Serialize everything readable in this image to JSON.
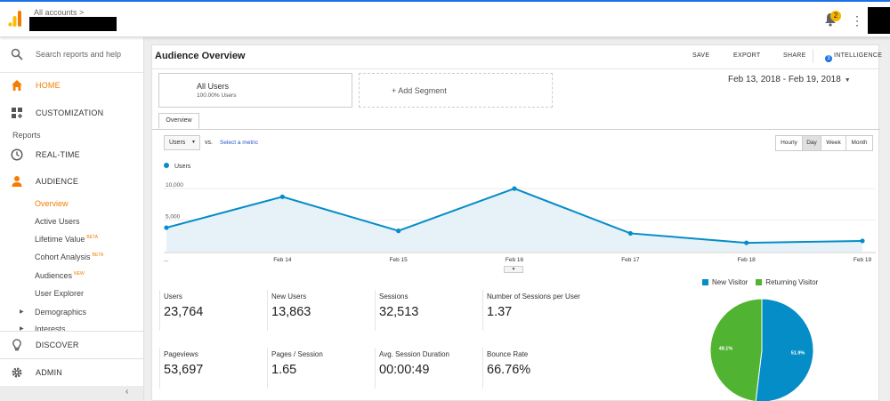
{
  "topbar": {
    "breadcrumb": "All accounts >",
    "notification_count": "2"
  },
  "sidebar": {
    "search_placeholder": "Search reports and help",
    "home": "HOME",
    "customization": "CUSTOMIZATION",
    "reports_label": "Reports",
    "realtime": "REAL-TIME",
    "audience": "AUDIENCE",
    "audience_items": [
      {
        "label": "Overview",
        "badge": ""
      },
      {
        "label": "Active Users",
        "badge": ""
      },
      {
        "label": "Lifetime Value",
        "badge": "BETA"
      },
      {
        "label": "Cohort Analysis",
        "badge": "BETA"
      },
      {
        "label": "Audiences",
        "badge": "NEW"
      },
      {
        "label": "User Explorer",
        "badge": ""
      },
      {
        "label": "Demographics",
        "badge": ""
      },
      {
        "label": "Interests",
        "badge": ""
      }
    ],
    "discover": "DISCOVER",
    "admin": "ADMIN",
    "collapse_glyph": "‹"
  },
  "header": {
    "title": "Audience Overview",
    "actions": [
      "SAVE",
      "EXPORT",
      "SHARE",
      "INTELLIGENCE"
    ],
    "intelligence_count": "3"
  },
  "segments": {
    "active_name": "All Users",
    "active_pct": "100.00% Users",
    "add_label": "+ Add Segment"
  },
  "date_range": "Feb 13, 2018 - Feb 19, 2018",
  "tabs": [
    "Overview"
  ],
  "metric_selector": {
    "selected": "Users",
    "vs": "vs.",
    "select_metric": "Select a metric"
  },
  "granularity": {
    "options": [
      "Hourly",
      "Day",
      "Week",
      "Month"
    ],
    "selected": "Day"
  },
  "colors": {
    "accent_orange": "#f57c00",
    "line_blue": "#058dc7",
    "new_visitor": "#058dc7",
    "returning_visitor": "#50b432"
  },
  "chart_data": [
    {
      "type": "area",
      "series": [
        {
          "name": "Users",
          "values": [
            3800,
            8700,
            3300,
            10000,
            2900,
            1400,
            1700
          ]
        }
      ],
      "x": [
        "Feb 13",
        "Feb 14",
        "Feb 15",
        "Feb 16",
        "Feb 17",
        "Feb 18",
        "Feb 19"
      ],
      "x_tick_labels": [
        "...",
        "Feb 14",
        "Feb 15",
        "Feb 16",
        "Feb 17",
        "Feb 18",
        "Feb 19"
      ],
      "y_ticks": [
        "10,000",
        "5,000"
      ],
      "ylim": [
        0,
        11000
      ],
      "grid": true
    },
    {
      "type": "pie",
      "categories": [
        "New Visitor",
        "Returning Visitor"
      ],
      "values": [
        51.9,
        48.1
      ],
      "slice_labels": [
        "51.9%",
        "48.1%"
      ],
      "legend_position": "top"
    }
  ],
  "stats": [
    {
      "label": "Users",
      "value": "23,764"
    },
    {
      "label": "New Users",
      "value": "13,863"
    },
    {
      "label": "Sessions",
      "value": "32,513"
    },
    {
      "label": "Number of Sessions per User",
      "value": "1.37"
    },
    {
      "label": "Pageviews",
      "value": "53,697"
    },
    {
      "label": "Pages / Session",
      "value": "1.65"
    },
    {
      "label": "Avg. Session Duration",
      "value": "00:00:49"
    },
    {
      "label": "Bounce Rate",
      "value": "66.76%"
    }
  ]
}
